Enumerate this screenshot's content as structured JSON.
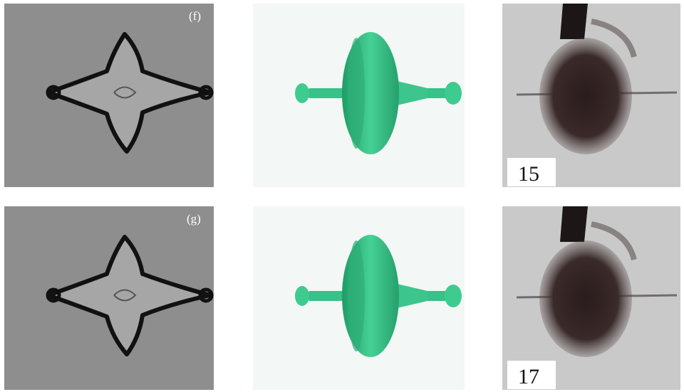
{
  "rows": [
    {
      "panel_label": "(f)",
      "frame_label": "15"
    },
    {
      "panel_label": "(g)",
      "frame_label": "17"
    }
  ]
}
